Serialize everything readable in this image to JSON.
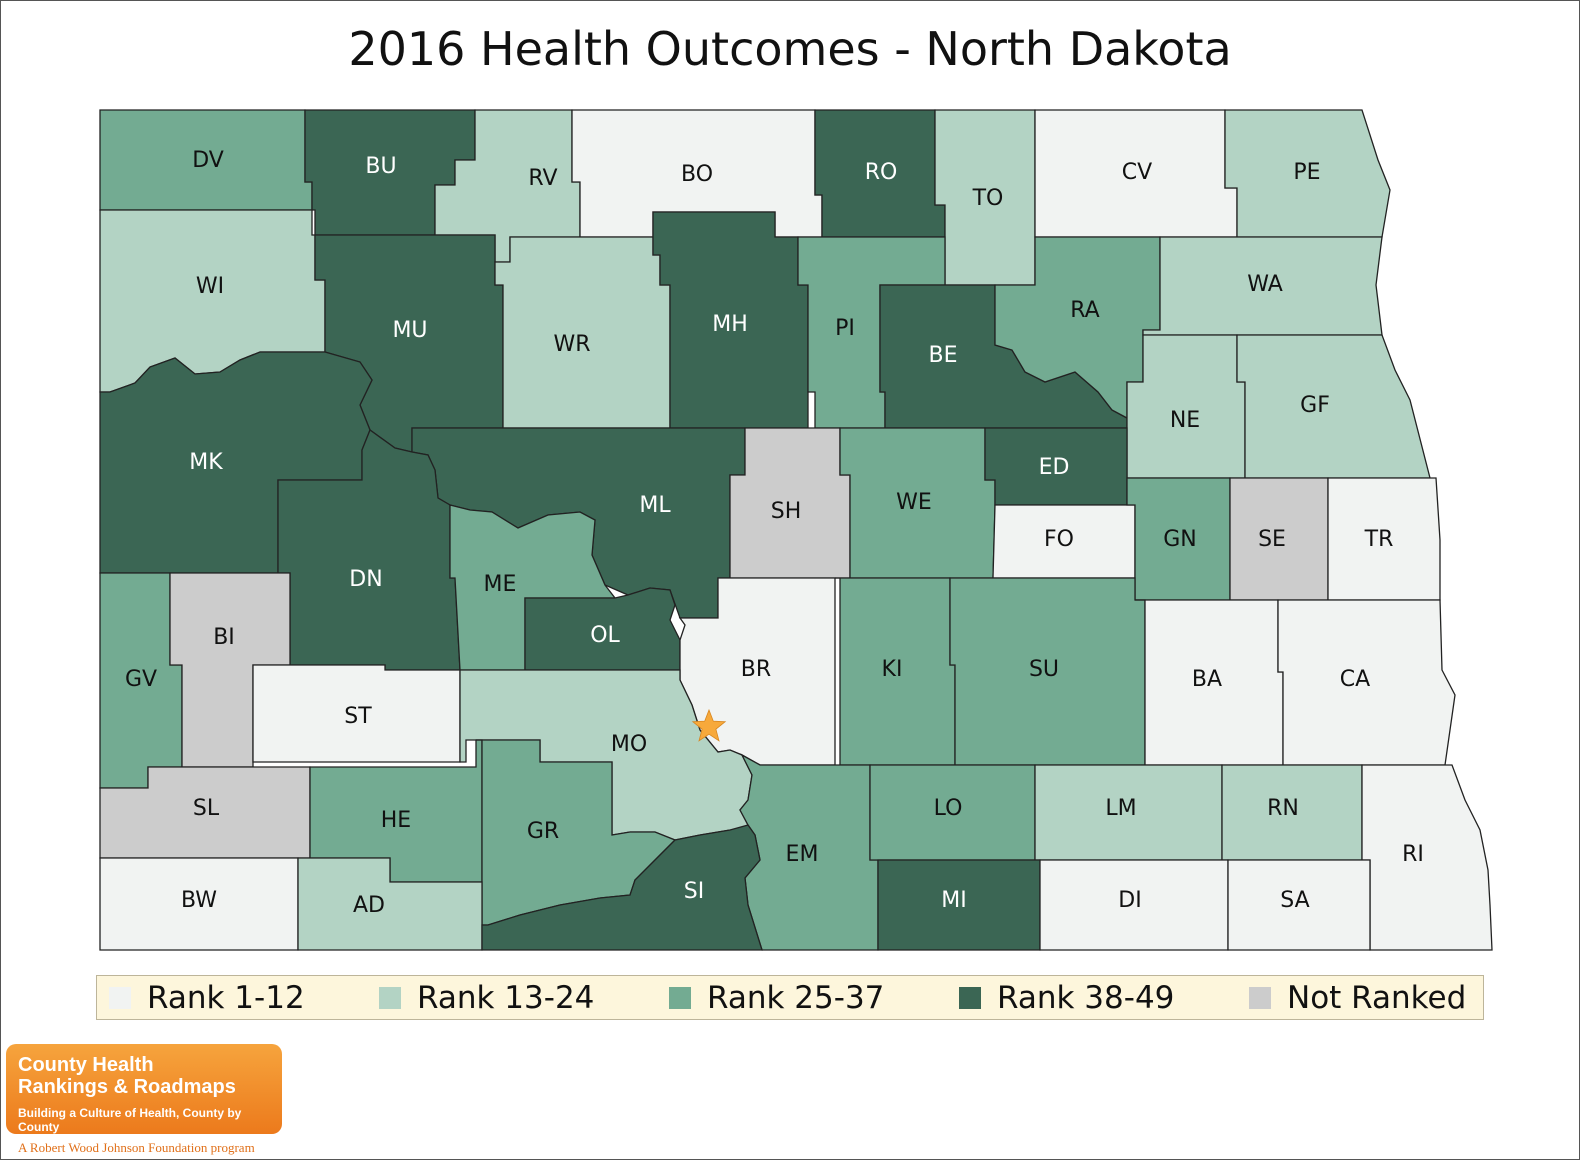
{
  "title": "2016 Health Outcomes - North Dakota",
  "colors": {
    "rank_1_12": "#f1f3f2",
    "rank_13_24": "#b3d3c4",
    "rank_25_37": "#73ab92",
    "rank_38_49": "#3b6654",
    "not_ranked": "#cccccc",
    "star": "#f7a93b"
  },
  "legend": [
    {
      "key": "rank_1_12",
      "label": "Rank 1-12"
    },
    {
      "key": "rank_13_24",
      "label": "Rank 13-24"
    },
    {
      "key": "rank_25_37",
      "label": "Rank 25-37"
    },
    {
      "key": "rank_38_49",
      "label": "Rank 38-49"
    },
    {
      "key": "not_ranked",
      "label": "Not Ranked"
    }
  ],
  "counties": [
    {
      "code": "DV",
      "category": "rank_25_37"
    },
    {
      "code": "BU",
      "category": "rank_38_49"
    },
    {
      "code": "RV",
      "category": "rank_13_24"
    },
    {
      "code": "BO",
      "category": "rank_1_12"
    },
    {
      "code": "RO",
      "category": "rank_38_49"
    },
    {
      "code": "TO",
      "category": "rank_13_24"
    },
    {
      "code": "CV",
      "category": "rank_1_12"
    },
    {
      "code": "PE",
      "category": "rank_13_24"
    },
    {
      "code": "WI",
      "category": "rank_13_24"
    },
    {
      "code": "MU",
      "category": "rank_38_49"
    },
    {
      "code": "WR",
      "category": "rank_13_24"
    },
    {
      "code": "MH",
      "category": "rank_38_49"
    },
    {
      "code": "PI",
      "category": "rank_25_37"
    },
    {
      "code": "BE",
      "category": "rank_38_49"
    },
    {
      "code": "RA",
      "category": "rank_25_37"
    },
    {
      "code": "WA",
      "category": "rank_13_24"
    },
    {
      "code": "NE",
      "category": "rank_13_24"
    },
    {
      "code": "GF",
      "category": "rank_13_24"
    },
    {
      "code": "MK",
      "category": "rank_38_49"
    },
    {
      "code": "ML",
      "category": "rank_38_49"
    },
    {
      "code": "SH",
      "category": "not_ranked"
    },
    {
      "code": "WE",
      "category": "rank_25_37"
    },
    {
      "code": "ED",
      "category": "rank_38_49"
    },
    {
      "code": "FO",
      "category": "rank_1_12"
    },
    {
      "code": "GN",
      "category": "rank_25_37"
    },
    {
      "code": "SE",
      "category": "not_ranked"
    },
    {
      "code": "TR",
      "category": "rank_1_12"
    },
    {
      "code": "DN",
      "category": "rank_38_49"
    },
    {
      "code": "ME",
      "category": "rank_25_37"
    },
    {
      "code": "OL",
      "category": "rank_38_49"
    },
    {
      "code": "BR",
      "category": "rank_1_12"
    },
    {
      "code": "KI",
      "category": "rank_25_37"
    },
    {
      "code": "SU",
      "category": "rank_25_37"
    },
    {
      "code": "BA",
      "category": "rank_1_12"
    },
    {
      "code": "CA",
      "category": "rank_1_12"
    },
    {
      "code": "GV",
      "category": "rank_25_37"
    },
    {
      "code": "BI",
      "category": "not_ranked"
    },
    {
      "code": "ST",
      "category": "rank_1_12"
    },
    {
      "code": "MO",
      "category": "rank_13_24"
    },
    {
      "code": "SL",
      "category": "not_ranked"
    },
    {
      "code": "HE",
      "category": "rank_25_37"
    },
    {
      "code": "GR",
      "category": "rank_25_37"
    },
    {
      "code": "EM",
      "category": "rank_25_37"
    },
    {
      "code": "LO",
      "category": "rank_25_37"
    },
    {
      "code": "LM",
      "category": "rank_13_24"
    },
    {
      "code": "RN",
      "category": "rank_13_24"
    },
    {
      "code": "RI",
      "category": "rank_1_12"
    },
    {
      "code": "BW",
      "category": "rank_1_12"
    },
    {
      "code": "AD",
      "category": "rank_13_24"
    },
    {
      "code": "SI",
      "category": "rank_38_49"
    },
    {
      "code": "MI",
      "category": "rank_38_49"
    },
    {
      "code": "DI",
      "category": "rank_1_12"
    },
    {
      "code": "SA",
      "category": "rank_1_12"
    }
  ],
  "logo": {
    "line1": "County Health",
    "line2": "Rankings & Roadmaps",
    "tagline": "Building a Culture of Health, County by County",
    "sub": "A Robert Wood Johnson Foundation program"
  }
}
